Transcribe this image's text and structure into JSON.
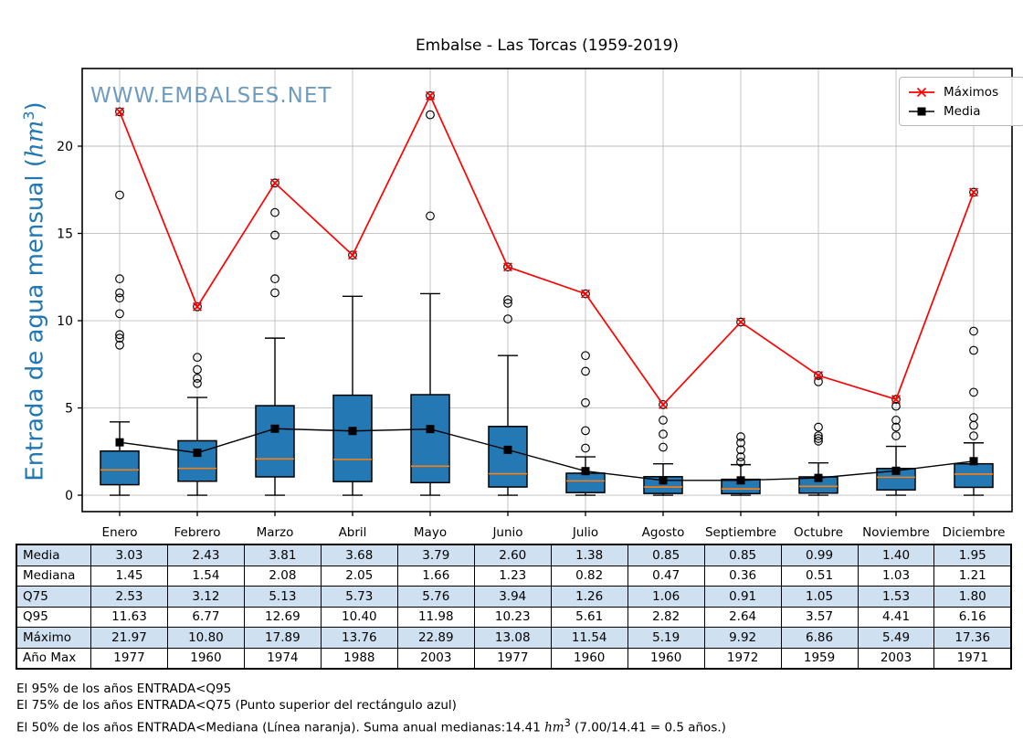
{
  "title": "Embalse - Las Torcas (1959-2019)",
  "watermark": "WWW.EMBALSES.NET",
  "y_axis": {
    "label_prefix": "Entrada de agua mensual (",
    "label_unit": "hm",
    "label_exp": "3",
    "label_suffix": ")"
  },
  "chart_data": {
    "type": "boxplot+line",
    "title": "Embalse - Las Torcas (1959-2019)",
    "ylabel": "Entrada de agua mensual (hm3)",
    "categories": [
      "Enero",
      "Febrero",
      "Marzo",
      "Abril",
      "Mayo",
      "Junio",
      "Julio",
      "Agosto",
      "Septiembre",
      "Octubre",
      "Noviembre",
      "Diciembre"
    ],
    "yticks": [
      0,
      5,
      10,
      15,
      20
    ],
    "ylim": [
      -0.94,
      24.45
    ],
    "grid": true,
    "legend_position": "upper right",
    "colors": {
      "box_fill": "#2478b4",
      "box_edge": "#000000",
      "median": "#ff7f0e",
      "maximos": "#ff0000",
      "media": "#000000",
      "grid": "#bdbdbd"
    },
    "series": [
      {
        "name": "Máximos",
        "marker": "x",
        "color": "#ff0000",
        "values": [
          21.97,
          10.8,
          17.89,
          13.76,
          22.89,
          13.08,
          11.54,
          5.19,
          9.92,
          6.86,
          5.49,
          17.36
        ]
      },
      {
        "name": "Media",
        "marker": "square",
        "color": "#000000",
        "values": [
          3.03,
          2.43,
          3.81,
          3.68,
          3.79,
          2.6,
          1.38,
          0.85,
          0.85,
          0.99,
          1.4,
          1.95
        ]
      }
    ],
    "boxes": [
      {
        "month": "Enero",
        "q25": 0.6,
        "median": 1.45,
        "q75": 2.53,
        "whisker_low": 0,
        "whisker_high": 4.2,
        "outliers": [
          8.6,
          9.0,
          9.2,
          10.4,
          11.3,
          11.6,
          12.4,
          17.2,
          21.97
        ]
      },
      {
        "month": "Febrero",
        "q25": 0.8,
        "median": 1.54,
        "q75": 3.12,
        "whisker_low": 0,
        "whisker_high": 5.6,
        "outliers": [
          6.4,
          6.7,
          7.2,
          7.9,
          10.8
        ]
      },
      {
        "month": "Marzo",
        "q25": 1.05,
        "median": 2.08,
        "q75": 5.13,
        "whisker_low": 0,
        "whisker_high": 9.0,
        "outliers": [
          11.6,
          12.4,
          14.9,
          16.2,
          17.89
        ]
      },
      {
        "month": "Abril",
        "q25": 0.78,
        "median": 2.05,
        "q75": 5.73,
        "whisker_low": 0,
        "whisker_high": 11.4,
        "outliers": [
          13.76
        ]
      },
      {
        "month": "Mayo",
        "q25": 0.72,
        "median": 1.66,
        "q75": 5.76,
        "whisker_low": 0,
        "whisker_high": 11.55,
        "outliers": [
          16.0,
          21.8,
          22.89
        ]
      },
      {
        "month": "Junio",
        "q25": 0.47,
        "median": 1.23,
        "q75": 3.94,
        "whisker_low": 0,
        "whisker_high": 8.0,
        "outliers": [
          10.1,
          11.0,
          11.2,
          13.08
        ]
      },
      {
        "month": "Julio",
        "q25": 0.15,
        "median": 0.82,
        "q75": 1.26,
        "whisker_low": 0,
        "whisker_high": 2.2,
        "outliers": [
          2.7,
          3.7,
          5.3,
          7.1,
          8.0,
          11.54
        ]
      },
      {
        "month": "Agosto",
        "q25": 0.1,
        "median": 0.47,
        "q75": 1.06,
        "whisker_low": 0,
        "whisker_high": 1.8,
        "outliers": [
          2.75,
          3.5,
          4.3,
          5.19
        ]
      },
      {
        "month": "Septiembre",
        "q25": 0.09,
        "median": 0.36,
        "q75": 0.91,
        "whisker_low": 0,
        "whisker_high": 1.75,
        "outliers": [
          1.9,
          2.2,
          2.6,
          3.0,
          3.35,
          9.92
        ]
      },
      {
        "month": "Octubre",
        "q25": 0.12,
        "median": 0.51,
        "q75": 1.05,
        "whisker_low": 0,
        "whisker_high": 1.85,
        "outliers": [
          3.1,
          3.25,
          3.4,
          3.9,
          6.5,
          6.86
        ]
      },
      {
        "month": "Noviembre",
        "q25": 0.3,
        "median": 1.03,
        "q75": 1.53,
        "whisker_low": 0,
        "whisker_high": 2.8,
        "outliers": [
          3.4,
          3.9,
          4.3,
          5.1,
          5.49
        ]
      },
      {
        "month": "Diciembre",
        "q25": 0.45,
        "median": 1.21,
        "q75": 1.8,
        "whisker_low": 0,
        "whisker_high": 3.0,
        "outliers": [
          3.4,
          4.0,
          4.45,
          5.9,
          8.3,
          9.4,
          17.36
        ]
      }
    ]
  },
  "table": {
    "columns": [
      "Enero",
      "Febrero",
      "Marzo",
      "Abril",
      "Mayo",
      "Junio",
      "Julio",
      "Agosto",
      "Septiembre",
      "Octubre",
      "Noviembre",
      "Diciembre"
    ],
    "rows": [
      {
        "label": "Media",
        "shaded": true,
        "values": [
          "3.03",
          "2.43",
          "3.81",
          "3.68",
          "3.79",
          "2.60",
          "1.38",
          "0.85",
          "0.85",
          "0.99",
          "1.40",
          "1.95"
        ]
      },
      {
        "label": "Mediana",
        "shaded": false,
        "values": [
          "1.45",
          "1.54",
          "2.08",
          "2.05",
          "1.66",
          "1.23",
          "0.82",
          "0.47",
          "0.36",
          "0.51",
          "1.03",
          "1.21"
        ]
      },
      {
        "label": "Q75",
        "shaded": true,
        "values": [
          "2.53",
          "3.12",
          "5.13",
          "5.73",
          "5.76",
          "3.94",
          "1.26",
          "1.06",
          "0.91",
          "1.05",
          "1.53",
          "1.80"
        ]
      },
      {
        "label": "Q95",
        "shaded": false,
        "values": [
          "11.63",
          "6.77",
          "12.69",
          "10.40",
          "11.98",
          "10.23",
          "5.61",
          "2.82",
          "2.64",
          "3.57",
          "4.41",
          "6.16"
        ]
      },
      {
        "label": "Máximo",
        "shaded": true,
        "values": [
          "21.97",
          "10.80",
          "17.89",
          "13.76",
          "22.89",
          "13.08",
          "11.54",
          "5.19",
          "9.92",
          "6.86",
          "5.49",
          "17.36"
        ]
      },
      {
        "label": "Año Max",
        "shaded": false,
        "values": [
          "1977",
          "1960",
          "1974",
          "1988",
          "2003",
          "1977",
          "1960",
          "1960",
          "1972",
          "1959",
          "2003",
          "1971"
        ]
      }
    ]
  },
  "footnotes": {
    "line1": "El 95% de los años ENTRADA<Q95",
    "line2": "El 75% de los años ENTRADA<Q75 (Punto superior del rectángulo azul)",
    "line3_prefix": "El 50% de los años ENTRADA<Mediana (Línea naranja). Suma anual medianas:14.41 ",
    "line3_unit": "hm",
    "line3_exp": "3",
    "line3_suffix": " (7.00/14.41 = 0.5 años.)"
  }
}
